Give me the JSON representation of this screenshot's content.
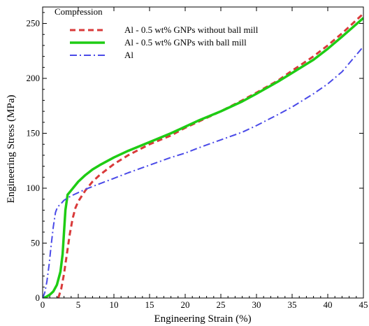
{
  "chart_data": {
    "type": "line",
    "title": "Compression",
    "xlabel": "Engineering Strain (%)",
    "ylabel": "Engineering Stress (MPa)",
    "xlim": [
      0,
      45
    ],
    "ylim": [
      0,
      265
    ],
    "xticks": [
      0,
      5,
      10,
      15,
      20,
      25,
      30,
      35,
      40,
      45
    ],
    "yticks": [
      0,
      50,
      100,
      150,
      200,
      250
    ],
    "grid": false,
    "legend_position": "top-left",
    "series": [
      {
        "name": "Al - 0.5 wt% GNPs without ball mill",
        "color": "#d93a3a",
        "dash": "dashed",
        "points": [
          [
            2.2,
            0
          ],
          [
            2.6,
            8
          ],
          [
            3.0,
            22
          ],
          [
            3.4,
            40
          ],
          [
            3.8,
            58
          ],
          [
            4.2,
            72
          ],
          [
            4.6,
            82
          ],
          [
            5,
            88
          ],
          [
            5.5,
            93
          ],
          [
            6,
            98
          ],
          [
            7,
            106
          ],
          [
            8,
            112
          ],
          [
            10,
            122
          ],
          [
            12,
            130
          ],
          [
            15,
            140
          ],
          [
            18,
            148
          ],
          [
            20,
            155
          ],
          [
            22,
            161
          ],
          [
            25,
            170
          ],
          [
            28,
            180
          ],
          [
            30,
            187
          ],
          [
            33,
            198
          ],
          [
            35,
            207
          ],
          [
            38,
            220
          ],
          [
            40,
            230
          ],
          [
            42,
            241
          ],
          [
            45,
            259
          ]
        ]
      },
      {
        "name": "Al - 0.5 wt% GNPs with ball mill",
        "color": "#1ecc14",
        "dash": "solid",
        "points": [
          [
            0,
            0
          ],
          [
            0.5,
            1
          ],
          [
            1,
            3
          ],
          [
            1.5,
            6
          ],
          [
            2,
            12
          ],
          [
            2.5,
            24
          ],
          [
            2.8,
            40
          ],
          [
            3.0,
            60
          ],
          [
            3.2,
            80
          ],
          [
            3.5,
            94
          ],
          [
            4,
            98
          ],
          [
            5,
            106
          ],
          [
            6,
            112
          ],
          [
            7,
            117
          ],
          [
            8,
            121
          ],
          [
            10,
            128
          ],
          [
            12,
            134
          ],
          [
            15,
            142
          ],
          [
            18,
            150
          ],
          [
            20,
            156
          ],
          [
            22,
            162
          ],
          [
            25,
            170
          ],
          [
            28,
            179
          ],
          [
            30,
            186
          ],
          [
            33,
            197
          ],
          [
            35,
            205
          ],
          [
            38,
            217
          ],
          [
            40,
            227
          ],
          [
            42,
            238
          ],
          [
            45,
            255
          ]
        ]
      },
      {
        "name": "Al",
        "color": "#4a4ae8",
        "dash": "dashdot",
        "points": [
          [
            0,
            0
          ],
          [
            0.3,
            5
          ],
          [
            0.6,
            15
          ],
          [
            0.9,
            30
          ],
          [
            1.2,
            48
          ],
          [
            1.5,
            65
          ],
          [
            1.8,
            78
          ],
          [
            2.1,
            83
          ],
          [
            2.6,
            86
          ],
          [
            3,
            89
          ],
          [
            3.5,
            91
          ],
          [
            4,
            93
          ],
          [
            5,
            96
          ],
          [
            6,
            99
          ],
          [
            8,
            104
          ],
          [
            10,
            109
          ],
          [
            12,
            114
          ],
          [
            15,
            121
          ],
          [
            18,
            128
          ],
          [
            20,
            132
          ],
          [
            22,
            137
          ],
          [
            25,
            144
          ],
          [
            28,
            151
          ],
          [
            30,
            157
          ],
          [
            33,
            167
          ],
          [
            35,
            174
          ],
          [
            38,
            186
          ],
          [
            40,
            195
          ],
          [
            42,
            206
          ],
          [
            45,
            229
          ]
        ]
      }
    ]
  }
}
